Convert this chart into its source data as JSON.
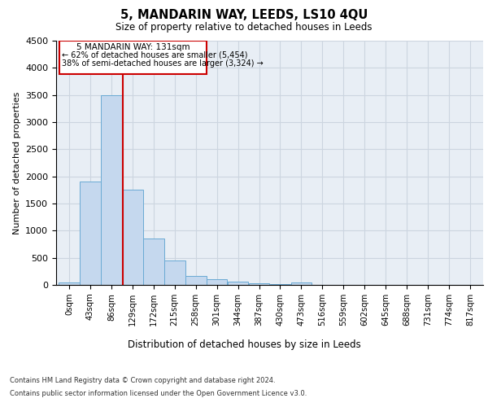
{
  "title": "5, MANDARIN WAY, LEEDS, LS10 4QU",
  "subtitle": "Size of property relative to detached houses in Leeds",
  "xlabel": "Distribution of detached houses by size in Leeds",
  "ylabel": "Number of detached properties",
  "footer_line1": "Contains HM Land Registry data © Crown copyright and database right 2024.",
  "footer_line2": "Contains public sector information licensed under the Open Government Licence v3.0.",
  "property_label": "5 MANDARIN WAY: 131sqm",
  "annotation_line1": "← 62% of detached houses are smaller (5,454)",
  "annotation_line2": "38% of semi-detached houses are larger (3,324) →",
  "bin_edges": [
    0,
    43,
    86,
    129,
    172,
    215,
    258,
    301,
    344,
    387,
    430,
    473,
    516,
    559,
    602,
    645,
    688,
    731,
    774,
    817,
    860
  ],
  "bar_heights": [
    50,
    1900,
    3500,
    1750,
    850,
    450,
    170,
    100,
    60,
    35,
    15,
    50,
    0,
    0,
    0,
    0,
    0,
    0,
    0,
    0
  ],
  "bar_color": "#c5d8ee",
  "bar_edge_color": "#6aaad4",
  "vline_color": "#cc0000",
  "vline_x": 131,
  "box_color": "#cc0000",
  "ylim": [
    0,
    4500
  ],
  "yticks": [
    0,
    500,
    1000,
    1500,
    2000,
    2500,
    3000,
    3500,
    4000,
    4500
  ],
  "grid_color": "#ccd5e0",
  "plot_bg_color": "#e8eef5"
}
